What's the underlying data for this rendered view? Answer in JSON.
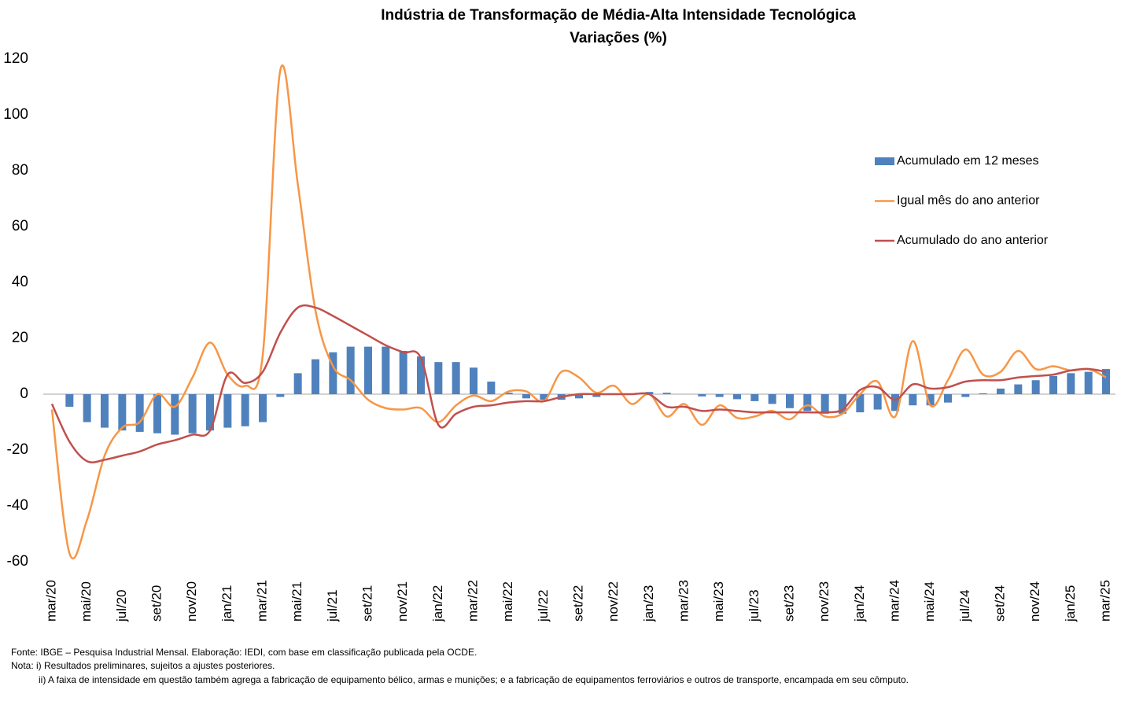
{
  "chart_data": {
    "type": "bar-line",
    "title": "Indústria de Transformação de Média-Alta Intensidade Tecnológica",
    "subtitle": "Variações (%)",
    "categories": [
      "mar/20",
      null,
      "mai/20",
      null,
      "jul/20",
      null,
      "set/20",
      null,
      "nov/20",
      null,
      "jan/21",
      null,
      "mar/21",
      null,
      "mai/21",
      null,
      "jul/21",
      null,
      "set/21",
      null,
      "nov/21",
      null,
      "jan/22",
      null,
      "mar/22",
      null,
      "mai/22",
      null,
      "jul/22",
      null,
      "set/22",
      null,
      "nov/22",
      null,
      "jan/23",
      null,
      "mar/23",
      null,
      "mai/23",
      null,
      "jul/23",
      null,
      "set/23",
      null,
      "nov/23",
      null,
      "jan/24",
      null,
      "mar/24",
      null,
      "mai/24",
      null,
      "jul/24",
      null,
      "set/24",
      null,
      "nov/24",
      null,
      "jan/25",
      null,
      "mar/25"
    ],
    "series": [
      {
        "name": "Acumulado em 12 meses",
        "kind": "bar",
        "color": "#4f81bd",
        "values": [
          0,
          -4.5,
          -10,
          -12,
          -13,
          -13.5,
          -14,
          -14.5,
          -14,
          -13,
          -12,
          -11.5,
          -10,
          -1,
          7.5,
          12.5,
          15,
          17,
          17,
          17,
          15.5,
          13.5,
          11.5,
          11.5,
          9.5,
          4.5,
          0.5,
          -1.5,
          -2,
          -2,
          -1.5,
          -1,
          0.3,
          0.2,
          0.8,
          0.5,
          0,
          -0.8,
          -1,
          -1.8,
          -2.5,
          -3.5,
          -5,
          -6,
          -7,
          -7,
          -6.5,
          -5.5,
          -6,
          -4,
          -4,
          -3,
          -1,
          0.3,
          2,
          3.5,
          5,
          6.5,
          7.5,
          8,
          9
        ]
      },
      {
        "name": "Igual mês do ano anterior",
        "kind": "line",
        "color": "#f79646",
        "values": [
          -5.5,
          -57,
          -45,
          -22,
          -12,
          -10,
          0,
          -4.5,
          6,
          18.5,
          7,
          3,
          14,
          116,
          75,
          30,
          10,
          5,
          -2,
          -5,
          -5.5,
          -5,
          -10,
          -4,
          -0.5,
          -2.5,
          1,
          1,
          -2.5,
          8,
          6,
          0.5,
          3,
          -3.5,
          0,
          -8,
          -3.5,
          -11,
          -4,
          -8.5,
          -8,
          -6,
          -9,
          -4,
          -8,
          -7,
          0,
          4.5,
          -8,
          19,
          -4,
          5,
          16,
          7,
          8,
          15.5,
          9,
          10,
          8.5,
          9,
          6
        ]
      },
      {
        "name": "Acumulado do ano anterior",
        "kind": "line",
        "color": "#c0504d",
        "values": [
          -3.5,
          -17,
          -24,
          -23.5,
          -22,
          -20.5,
          -18,
          -16.5,
          -14.5,
          -13,
          7,
          4,
          8,
          22,
          31,
          31,
          28,
          24.5,
          21,
          17.5,
          15,
          13,
          -11,
          -7,
          -4.5,
          -4,
          -3,
          -2.5,
          -2.5,
          -1,
          0,
          0,
          0,
          0,
          0,
          -4.5,
          -4.5,
          -6,
          -5.5,
          -6,
          -6.5,
          -6.5,
          -6.5,
          -6.5,
          -6.5,
          -5.5,
          1.5,
          2.5,
          -2,
          3.5,
          2,
          2.5,
          4.5,
          5,
          5,
          6,
          6.5,
          7,
          8.5,
          9,
          8
        ]
      }
    ],
    "ylim": [
      -60,
      120
    ],
    "yticks": [
      -60,
      -40,
      -20,
      0,
      20,
      40,
      60,
      80,
      100,
      120
    ],
    "grid": false,
    "legend": "right",
    "notes": [
      "Fonte: IBGE – Pesquisa Industrial Mensal. Elaboração: IEDI, com base em classificação publicada pela OCDE.",
      "Nota: i) Resultados preliminares, sujeitos a ajustes posteriores.",
      "ii) A faixa de intensidade em questão também agrega a fabricação de equipamento bélico, armas e munições; e a fabricação de equipamentos ferroviários e outros de transporte, encampada em seu cômputo."
    ]
  }
}
